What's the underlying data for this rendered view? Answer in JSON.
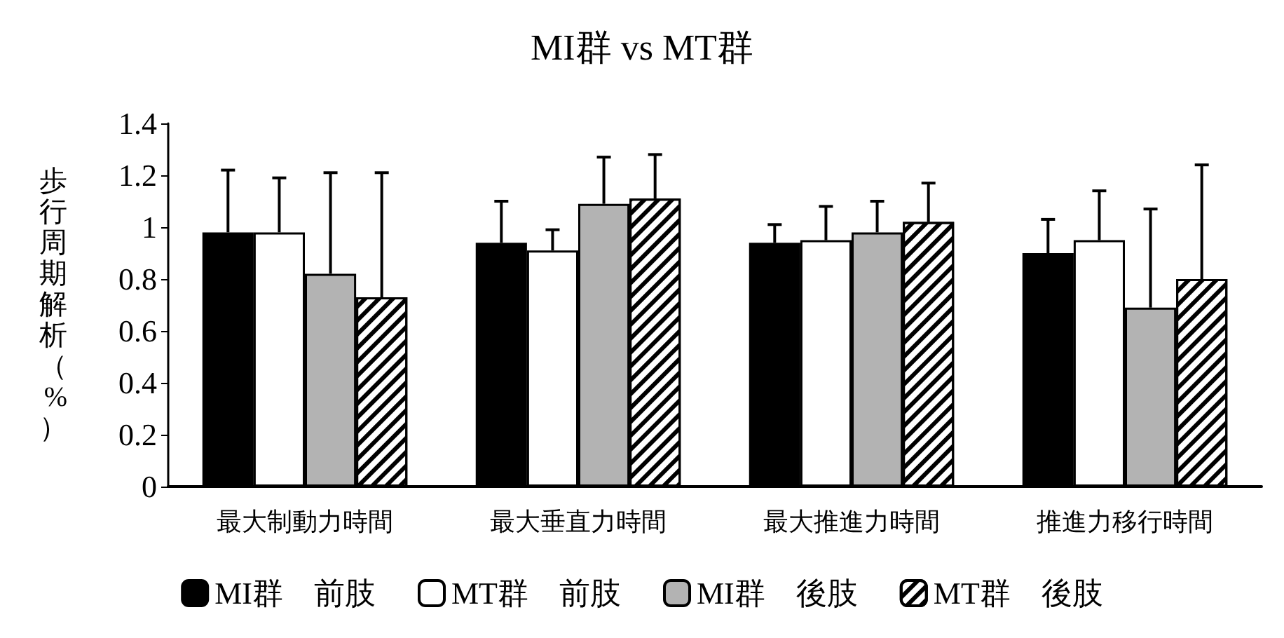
{
  "chart_data": {
    "type": "bar",
    "title": "MI群 vs MT群",
    "ylabel": "歩行周期解析（%）",
    "categories": [
      "最大制動力時間",
      "最大垂直力時間",
      "最大推進力時間",
      "推進力移行時間"
    ],
    "series": [
      {
        "name": "MI群　前肢",
        "color": "#000000",
        "values": [
          0.98,
          0.94,
          0.94,
          0.9
        ],
        "errors": [
          [
            0.98,
            1.22
          ],
          [
            0.94,
            1.1
          ],
          [
            0.94,
            1.01
          ],
          [
            0.9,
            1.03
          ]
        ]
      },
      {
        "name": "MT群　前肢",
        "color": "#ffffff",
        "values": [
          0.98,
          0.91,
          0.95,
          0.95
        ],
        "errors": [
          [
            0.98,
            1.19
          ],
          [
            0.91,
            0.99
          ],
          [
            0.95,
            1.08
          ],
          [
            0.95,
            1.14
          ]
        ]
      },
      {
        "name": "MI群　後肢",
        "color": "#b3b3b3",
        "values": [
          0.82,
          1.09,
          0.98,
          0.69
        ],
        "errors": [
          [
            0.82,
            1.21
          ],
          [
            1.09,
            1.27
          ],
          [
            0.98,
            1.1
          ],
          [
            0.69,
            1.07
          ]
        ]
      },
      {
        "name": "MT群　後肢",
        "color": "#ffffff",
        "values": [
          0.73,
          1.11,
          1.02,
          0.8
        ],
        "errors": [
          [
            0.73,
            1.21
          ],
          [
            1.11,
            1.28
          ],
          [
            1.02,
            1.17
          ],
          [
            0.8,
            1.24
          ]
        ]
      }
    ],
    "ylim": [
      0,
      1.4
    ],
    "yticks": [
      0,
      0.2,
      0.4,
      0.6,
      0.8,
      1,
      1.2,
      1.4
    ],
    "grid": false,
    "legend": "bottom"
  }
}
